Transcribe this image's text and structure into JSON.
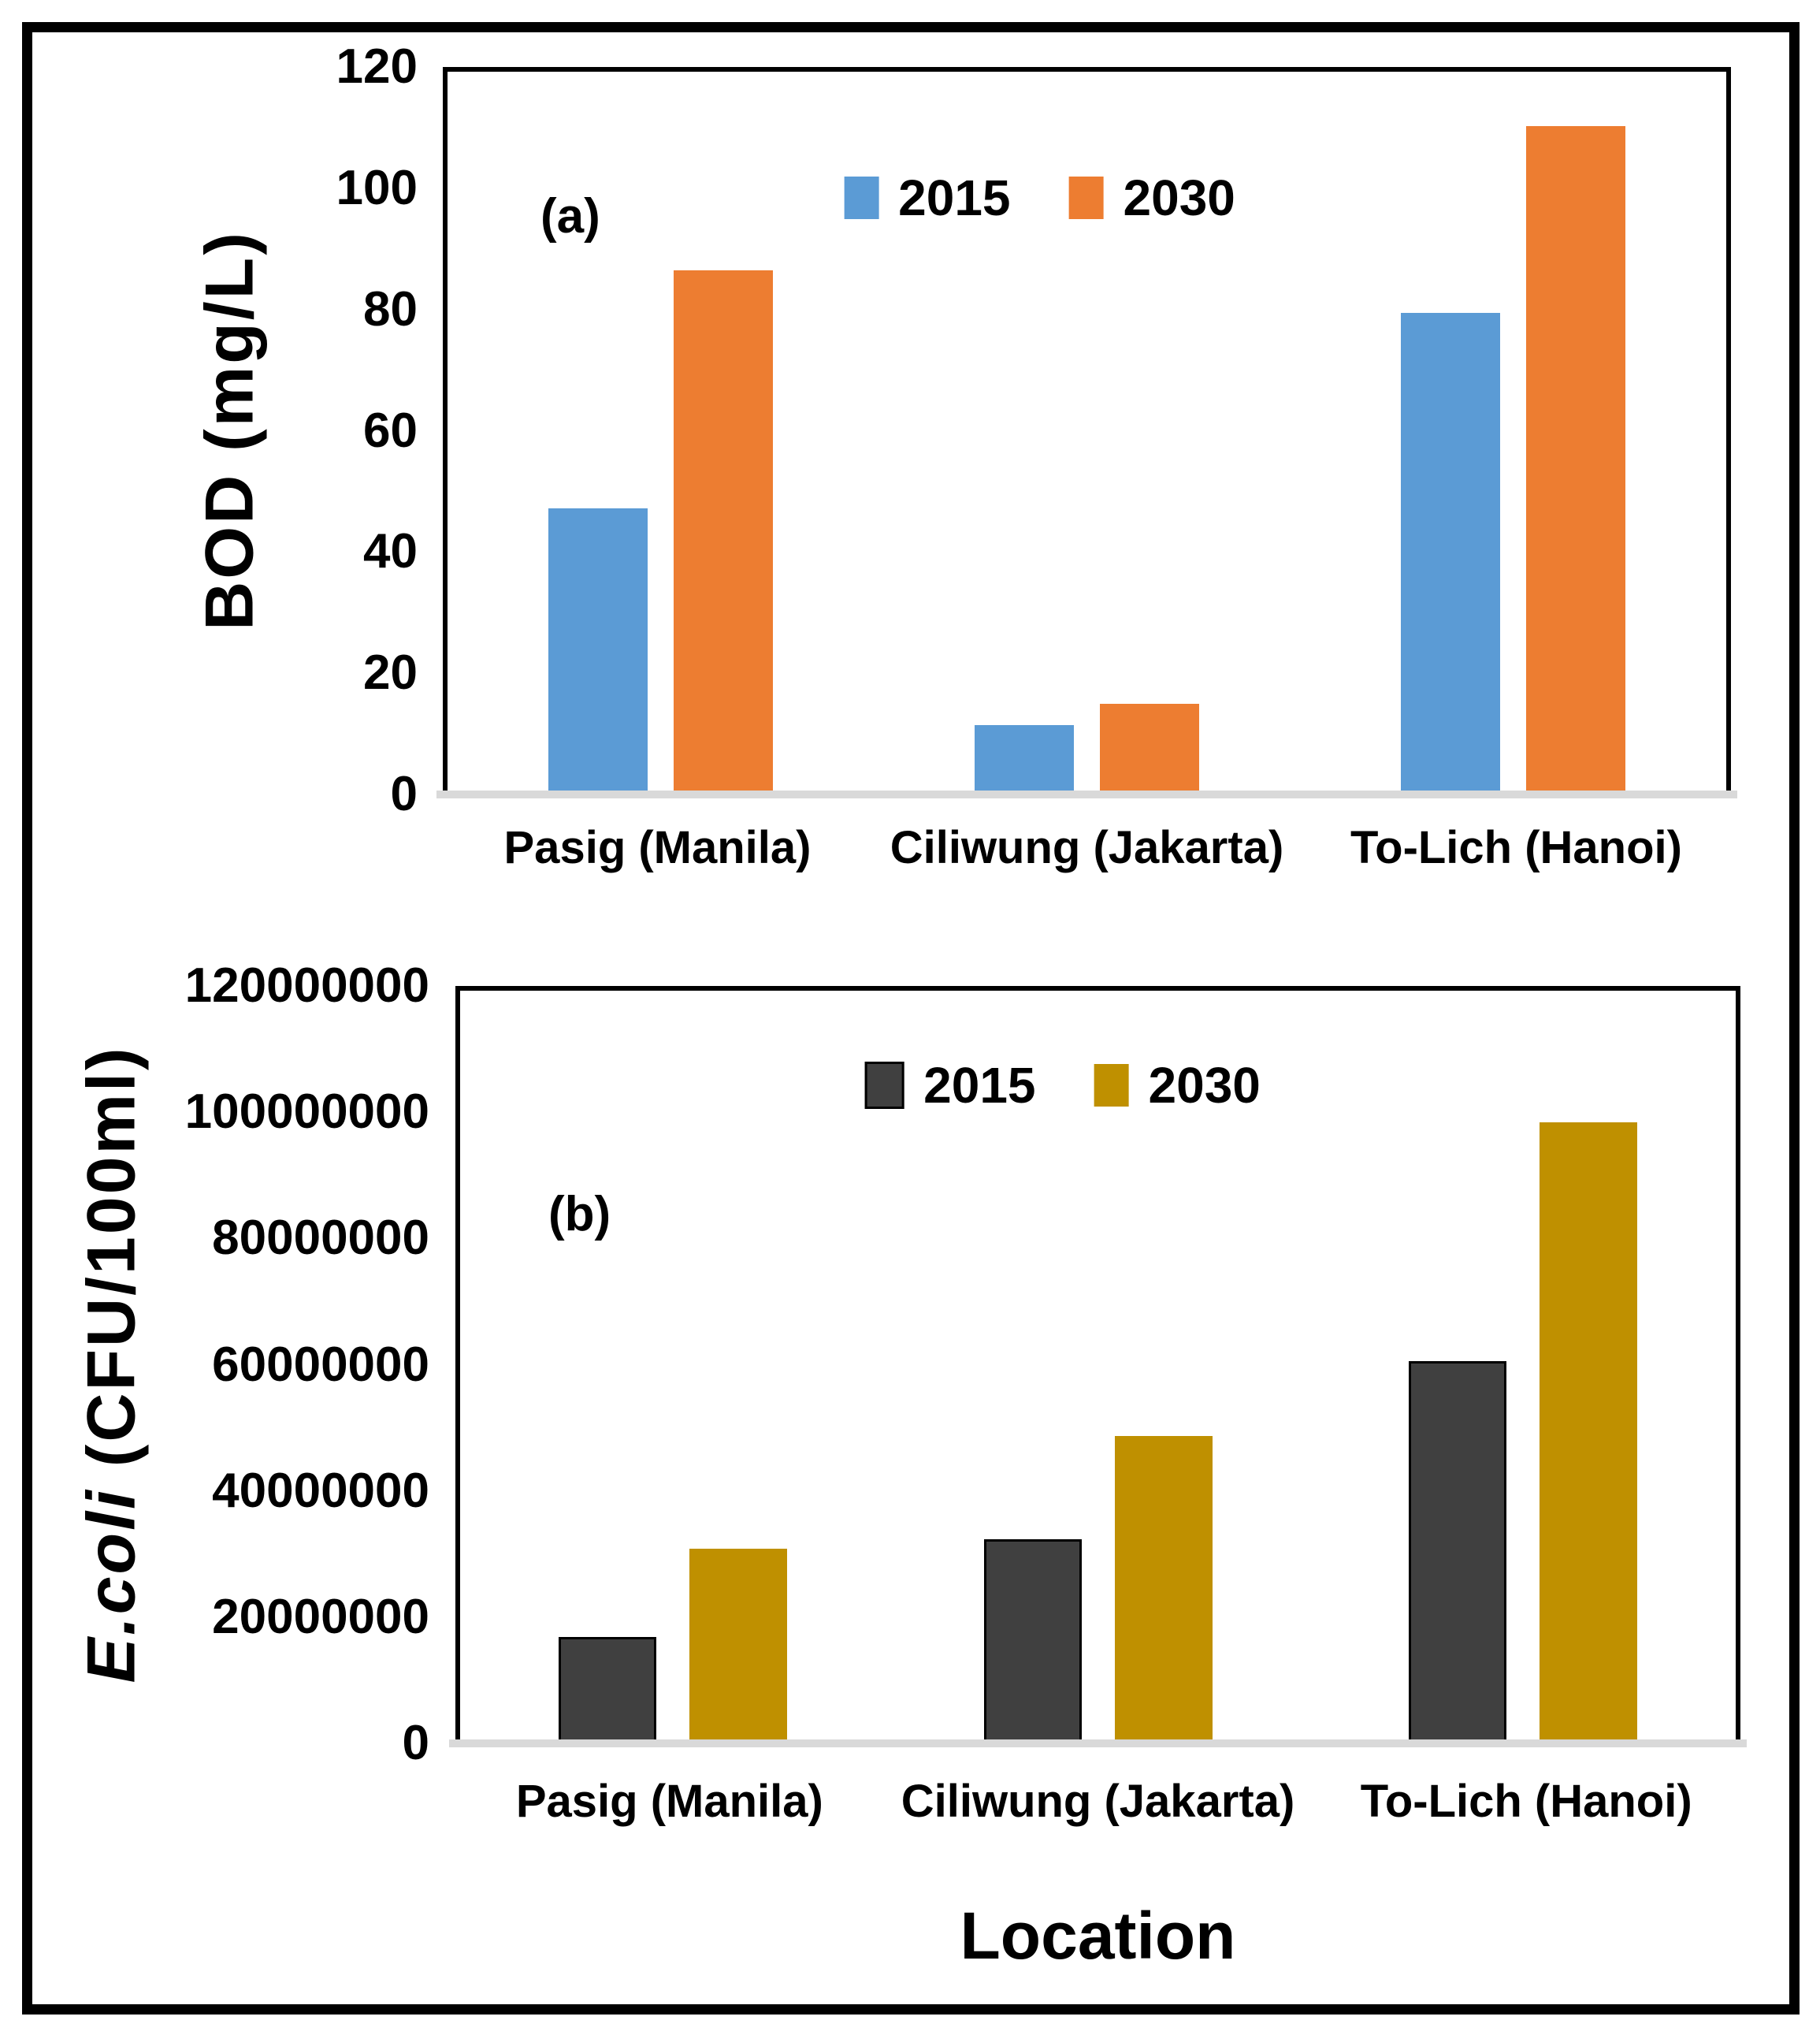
{
  "chart_data": [
    {
      "id": "a",
      "type": "bar",
      "panel_label": "(a)",
      "ylabel": "BOD (mg/L)",
      "xlabel": "",
      "categories": [
        "Pasig (Manila)",
        "Ciliwung (Jakarta)",
        "To-Lich (Hanoi)"
      ],
      "series": [
        {
          "name": "2015",
          "color": "#5B9BD5",
          "values": [
            47.5,
            11.5,
            80
          ]
        },
        {
          "name": "2030",
          "color": "#ED7D31",
          "values": [
            87,
            15,
            111
          ]
        }
      ],
      "ylim": [
        0,
        120
      ],
      "ytick_labels": [
        "0",
        "20",
        "40",
        "60",
        "80",
        "100",
        "120"
      ],
      "grid": false,
      "legend_position": "top-center",
      "baseline_color": "#D9D9D9",
      "frame_color": "#000000"
    },
    {
      "id": "b",
      "type": "bar",
      "panel_label": "(b)",
      "ylabel": "E.coli (CFU/100ml)",
      "ylabel_parts": {
        "italic": "E.coli",
        "rest": " (CFU/100ml)"
      },
      "xlabel": "Location",
      "categories": [
        "Pasig (Manila)",
        "Ciliwung (Jakarta)",
        "To-Lich (Hanoi)"
      ],
      "series": [
        {
          "name": "2015",
          "color": "#404040",
          "border": "#000000",
          "values": [
            17000000,
            32500000,
            61000000
          ]
        },
        {
          "name": "2030",
          "color": "#BF9000",
          "values": [
            31000000,
            49000000,
            99000000
          ]
        }
      ],
      "ylim": [
        0,
        120000000
      ],
      "ytick_labels": [
        "0",
        "20000000",
        "40000000",
        "60000000",
        "80000000",
        "100000000",
        "120000000"
      ],
      "grid": false,
      "legend_position": "top-center",
      "baseline_color": "#D9D9D9",
      "frame_color": "#000000"
    }
  ]
}
